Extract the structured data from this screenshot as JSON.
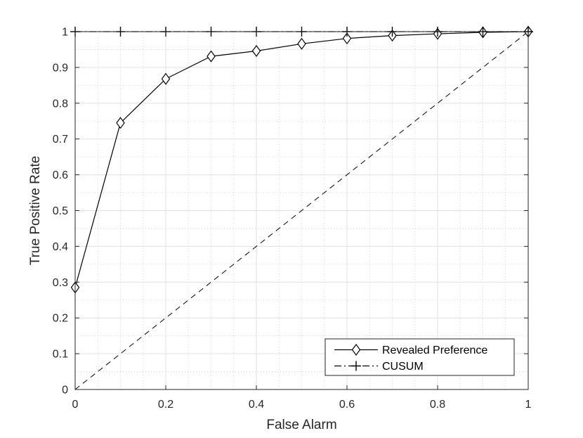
{
  "chart_data": {
    "type": "line",
    "title": "",
    "xlabel": "False Alarm",
    "ylabel": "True Positive Rate",
    "xlim": [
      0,
      1
    ],
    "ylim": [
      0,
      1
    ],
    "xticks": [
      "0",
      "0.2",
      "0.4",
      "0.6",
      "0.8",
      "1"
    ],
    "xtick_values": [
      0,
      0.2,
      0.4,
      0.6,
      0.8,
      1
    ],
    "yticks": [
      "0",
      "0.1",
      "0.2",
      "0.3",
      "0.4",
      "0.5",
      "0.6",
      "0.7",
      "0.8",
      "0.9",
      "1"
    ],
    "ytick_values": [
      0,
      0.1,
      0.2,
      0.3,
      0.4,
      0.5,
      0.6,
      0.7,
      0.8,
      0.9,
      1
    ],
    "grid": true,
    "minor_grid": true,
    "legend_position": "bottom-right",
    "series": [
      {
        "name": "Revealed Preference",
        "line_style": "solid",
        "marker": "diamond",
        "color": "#000000",
        "x": [
          0,
          0.1,
          0.2,
          0.3,
          0.4,
          0.5,
          0.6,
          0.7,
          0.8,
          0.9,
          1.0
        ],
        "y": [
          0.285,
          0.745,
          0.868,
          0.931,
          0.946,
          0.966,
          0.981,
          0.989,
          0.994,
          0.998,
          1.0
        ]
      },
      {
        "name": "CUSUM",
        "line_style": "dashdot",
        "marker": "plus",
        "color": "#000000",
        "x": [
          0,
          0.1,
          0.2,
          0.3,
          0.4,
          0.5,
          0.6,
          0.7,
          0.8,
          0.9,
          1.0
        ],
        "y": [
          1,
          1,
          1,
          1,
          1,
          1,
          1,
          1,
          1,
          1,
          1
        ]
      }
    ],
    "reference_line": {
      "line_style": "dashed",
      "color": "#000000",
      "x": [
        0,
        1
      ],
      "y": [
        0,
        1
      ]
    }
  }
}
